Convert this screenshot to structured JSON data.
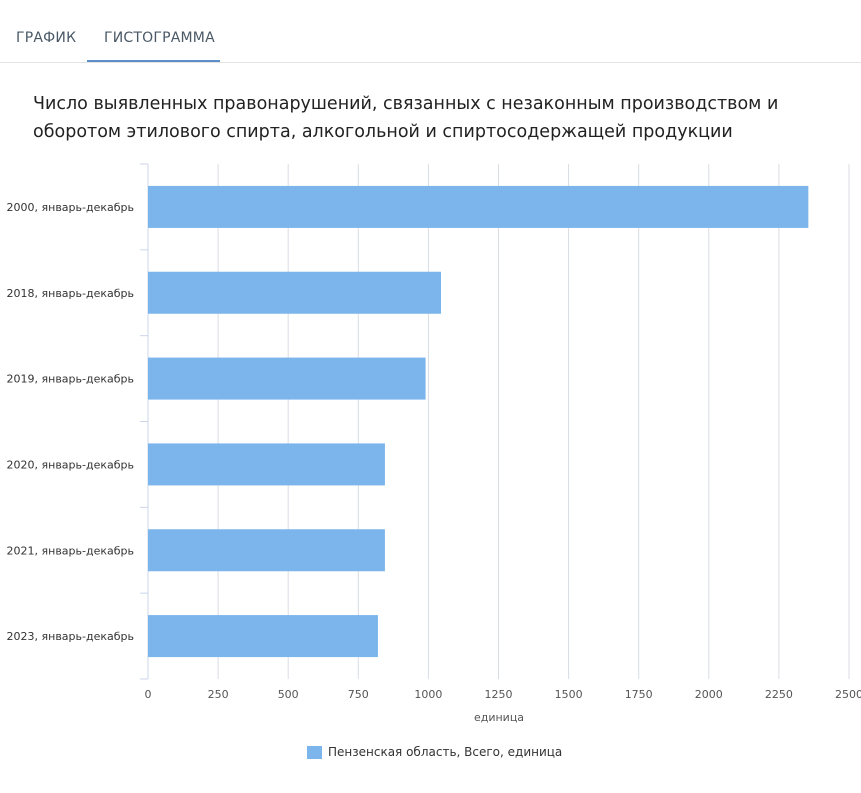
{
  "tabs": [
    {
      "label": "ГРАФИК",
      "active": false
    },
    {
      "label": "ГИСТОГРАММА",
      "active": true
    }
  ],
  "colors": {
    "bar": "#7cb5ec",
    "tab_active": "#5b8fc7",
    "grid": "#d8dde3"
  },
  "chart_data": {
    "type": "bar",
    "orientation": "horizontal",
    "title": "Число выявленных правонарушений, связанных с незаконным производством и оборотом этилового спирта, алкогольной и спиртосодержащей продукции",
    "categories": [
      "2000, январь-декабрь",
      "2018, январь-декабрь",
      "2019, январь-декабрь",
      "2020, январь-декабрь",
      "2021, январь-декабрь",
      "2023, январь-декабрь"
    ],
    "series": [
      {
        "name": "Пензенская область, Всего, единица",
        "values": [
          2355,
          1045,
          990,
          845,
          845,
          820
        ]
      }
    ],
    "xlabel": "единица",
    "ylabel": "",
    "xlim": [
      0,
      2500
    ],
    "ticks": [
      "0",
      "250",
      "500",
      "750",
      "1000",
      "1250",
      "1500",
      "1750",
      "2000",
      "2250",
      "2500"
    ],
    "grid": true,
    "legend": "bottom-center"
  }
}
